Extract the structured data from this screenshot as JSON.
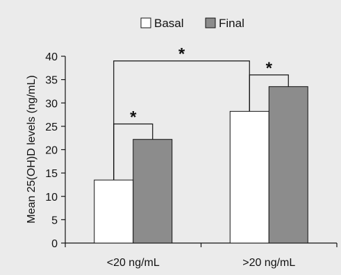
{
  "chart_data": {
    "type": "bar",
    "categories": [
      "<20 ng/mL",
      ">20 ng/mL"
    ],
    "series": [
      {
        "name": "Basal",
        "values": [
          13.5,
          28.2
        ],
        "color": "#ffffff"
      },
      {
        "name": "Final",
        "values": [
          22.2,
          33.5
        ],
        "color": "#8c8c8c"
      }
    ],
    "ylabel": "Mean 25(OH)D levels (ng/mL)",
    "xlabel": "",
    "ylim": [
      0,
      40
    ],
    "yticks": [
      0,
      5,
      10,
      15,
      20,
      25,
      30,
      35,
      40
    ],
    "legend_position": "top",
    "grid": false,
    "annotations": [
      {
        "label": "*",
        "type": "within-group",
        "group": "<20 ng/mL",
        "bracket_y": 25.5
      },
      {
        "label": "*",
        "type": "within-group",
        "group": ">20 ng/mL",
        "bracket_y": 36.0
      },
      {
        "label": "*",
        "type": "between-groups",
        "series": "Basal",
        "bracket_y": 39.0
      }
    ]
  }
}
